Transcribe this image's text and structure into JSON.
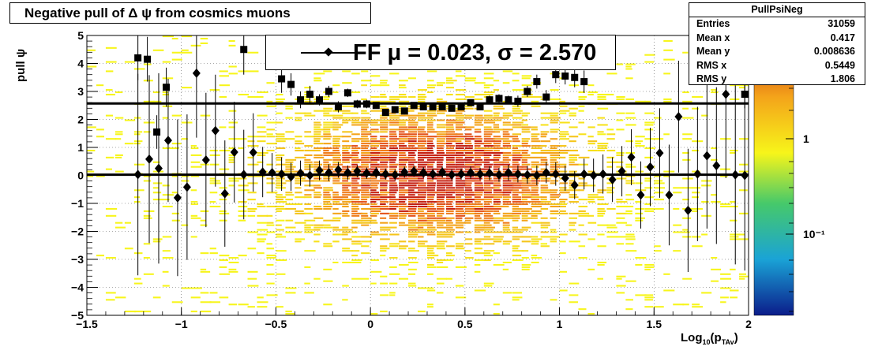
{
  "title": "Negative pull of Δ ψ from cosmics muons",
  "stats": {
    "name": "PullPsiNeg",
    "rows": [
      {
        "label": "Entries",
        "value": "31059"
      },
      {
        "label": "Mean x",
        "value": "0.417"
      },
      {
        "label": "Mean y",
        "value": "0.008636"
      },
      {
        "label": "RMS x",
        "value": "0.5449"
      },
      {
        "label": "RMS y",
        "value": "1.806"
      }
    ]
  },
  "legend": {
    "label": "FF μ =  0.023, σ =   2.570"
  },
  "colors": {
    "fit_lines": "#000000",
    "markers": "#000000",
    "background": "#ffffff"
  },
  "chart_data": {
    "type": "heatmap",
    "overlay": "profile means (diamonds) and RMS values (squares) with error bars",
    "title": "Negative pull of Δ ψ from cosmics muons",
    "xlabel": "Log10(pTAv)",
    "ylabel": "pull ψ",
    "xlim": [
      -1.5,
      2.0
    ],
    "ylim": [
      -5,
      5
    ],
    "x_ticks": [
      -1.5,
      -1,
      -0.5,
      0,
      0.5,
      1,
      1.5,
      2
    ],
    "x_tick_labels": [
      "−1.5",
      "−1",
      "−0.5",
      "0",
      "0.5",
      "1",
      "1.5",
      "2"
    ],
    "y_ticks": [
      -5,
      -4,
      -3,
      -2,
      -1,
      0,
      1,
      2,
      3,
      4,
      5
    ],
    "y_tick_labels": [
      "−5",
      "−4",
      "−3",
      "−2",
      "−1",
      "0",
      "1",
      "2",
      "3",
      "4",
      "5"
    ],
    "z_scale": "log",
    "z_tick_labels": [
      "1",
      "10⁻¹"
    ],
    "grid": true,
    "fit_lines": [
      {
        "label": "mean",
        "y": 0.023
      },
      {
        "label": "sigma",
        "y": 2.57
      }
    ],
    "means": {
      "x": [
        -1.23,
        -1.17,
        -1.12,
        -1.07,
        -1.02,
        -0.97,
        -0.92,
        -0.87,
        -0.82,
        -0.77,
        -0.72,
        -0.67,
        -0.62,
        -0.57,
        -0.52,
        -0.47,
        -0.42,
        -0.37,
        -0.32,
        -0.27,
        -0.22,
        -0.17,
        -0.12,
        -0.07,
        -0.02,
        0.03,
        0.08,
        0.13,
        0.18,
        0.23,
        0.28,
        0.33,
        0.38,
        0.43,
        0.48,
        0.53,
        0.58,
        0.63,
        0.68,
        0.73,
        0.78,
        0.83,
        0.88,
        0.93,
        0.98,
        1.03,
        1.08,
        1.13,
        1.18,
        1.23,
        1.28,
        1.33,
        1.38,
        1.43,
        1.48,
        1.53,
        1.58,
        1.63,
        1.68,
        1.73,
        1.78,
        1.83,
        1.88,
        1.93,
        1.98
      ],
      "y": [
        0.03,
        0.58,
        0.25,
        1.25,
        -0.8,
        -0.42,
        3.65,
        0.55,
        1.6,
        -0.65,
        0.83,
        0.03,
        0.82,
        0.12,
        0.1,
        0.05,
        -0.05,
        0.08,
        0.0,
        0.18,
        0.1,
        0.2,
        0.1,
        0.15,
        0.08,
        0.1,
        0.05,
        0.02,
        0.12,
        0.15,
        0.1,
        0.05,
        0.12,
        0.02,
        0.05,
        0.1,
        0.05,
        0.08,
        0.02,
        0.1,
        0.05,
        0.02,
        0.0,
        0.1,
        0.05,
        -0.1,
        -0.35,
        0.05,
        0.0,
        0.05,
        -0.15,
        0.15,
        0.65,
        -0.7,
        0.3,
        0.8,
        -0.7,
        2.1,
        -1.25,
        0.05,
        0.7,
        0.35,
        2.9,
        0.02,
        0.0
      ],
      "err": [
        3.6,
        3.0,
        3.4,
        2.2,
        2.8,
        2.6,
        2.3,
        2.4,
        2.0,
        1.9,
        1.8,
        1.6,
        1.4,
        0.9,
        0.7,
        0.6,
        0.5,
        0.45,
        0.4,
        0.35,
        0.3,
        0.28,
        0.25,
        0.22,
        0.2,
        0.2,
        0.2,
        0.2,
        0.2,
        0.2,
        0.2,
        0.2,
        0.2,
        0.2,
        0.2,
        0.22,
        0.22,
        0.25,
        0.25,
        0.28,
        0.3,
        0.32,
        0.35,
        0.38,
        0.42,
        0.45,
        0.5,
        0.55,
        0.6,
        0.7,
        0.8,
        0.9,
        1.0,
        1.2,
        1.4,
        1.6,
        1.8,
        2.0,
        2.2,
        2.4,
        2.6,
        2.8,
        3.0,
        3.2,
        3.4
      ]
    },
    "rms": {
      "x": [
        -1.23,
        -1.18,
        -1.13,
        -1.08,
        -0.67,
        -0.47,
        -0.42,
        -0.37,
        -0.32,
        -0.27,
        -0.22,
        -0.17,
        -0.12,
        -0.07,
        -0.02,
        0.03,
        0.08,
        0.13,
        0.18,
        0.23,
        0.28,
        0.33,
        0.38,
        0.43,
        0.48,
        0.53,
        0.58,
        0.63,
        0.68,
        0.73,
        0.78,
        0.83,
        0.88,
        0.93,
        0.98,
        1.03,
        1.08,
        1.13,
        1.98
      ],
      "y": [
        4.2,
        4.15,
        1.55,
        3.15,
        4.5,
        3.45,
        3.25,
        2.7,
        2.9,
        2.7,
        3.0,
        2.45,
        2.95,
        2.55,
        2.55,
        2.5,
        2.25,
        2.35,
        2.3,
        2.5,
        2.45,
        2.45,
        2.45,
        2.4,
        2.45,
        2.6,
        2.45,
        2.7,
        2.75,
        2.7,
        2.65,
        3.0,
        3.35,
        2.8,
        3.6,
        3.55,
        3.5,
        3.35,
        2.9
      ],
      "err": [
        0.8,
        0.8,
        0.6,
        0.7,
        0.9,
        0.5,
        0.4,
        0.3,
        0.3,
        0.2,
        0.2,
        0.2,
        0.15,
        0.15,
        0.15,
        0.12,
        0.12,
        0.12,
        0.12,
        0.12,
        0.12,
        0.12,
        0.12,
        0.12,
        0.12,
        0.12,
        0.12,
        0.15,
        0.15,
        0.15,
        0.2,
        0.2,
        0.25,
        0.25,
        0.3,
        0.3,
        0.35,
        0.4,
        0.5
      ]
    }
  }
}
